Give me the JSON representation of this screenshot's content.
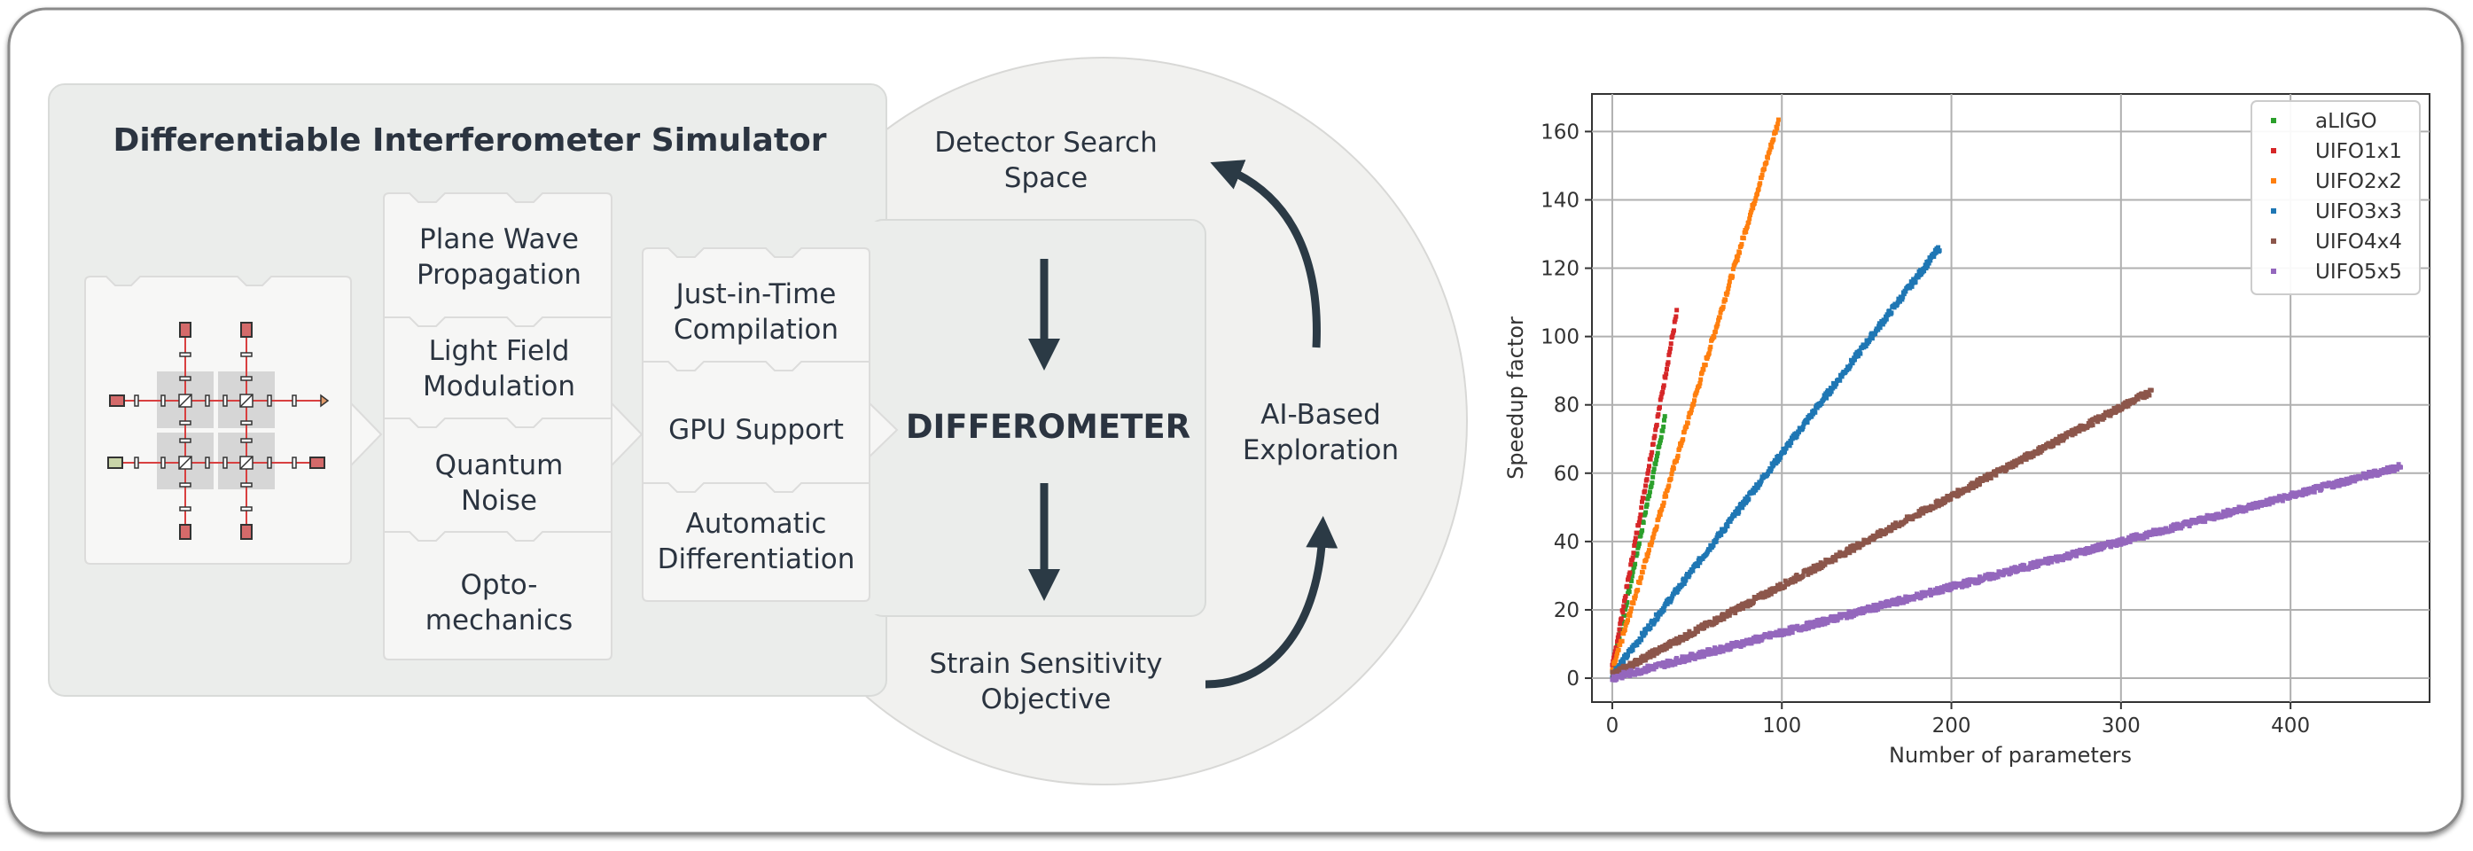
{
  "simulator": {
    "title": "Differentiable Interferometer Simulator",
    "physics_blocks": [
      "Plane Wave Propagation",
      "Light Field Modulation",
      "Quantum Noise",
      "Opto-mechanics"
    ],
    "software_blocks": [
      "Just-in-Time Compilation",
      "GPU Support",
      "Automatic Differentiation"
    ]
  },
  "core": {
    "name": "DIFFEROMETER",
    "search_space": "Detector Search Space",
    "objective": "Strain Sensitivity Objective",
    "exploration": "AI-Based Exploration"
  },
  "colors": {
    "panel_fill": "#ebedeb",
    "block_fill": "#f6f6f5",
    "circle_fill": "#f1f1ef",
    "text_dark": "#2b3440",
    "arrow": "#2b3a45"
  },
  "chart_data": {
    "type": "scatter",
    "title": "",
    "xlabel": "Number of parameters",
    "ylabel": "Speedup factor",
    "xlim": [
      -12,
      482
    ],
    "ylim": [
      -7,
      171
    ],
    "xticks": [
      0,
      100,
      200,
      300,
      400
    ],
    "yticks": [
      0,
      20,
      40,
      60,
      80,
      100,
      120,
      140,
      160
    ],
    "grid": true,
    "legend_position": "top-right",
    "series": [
      {
        "name": "aLIGO",
        "color": "#2ca02c",
        "x_range": [
          0,
          31
        ],
        "y_start": 2,
        "y_end": 76
      },
      {
        "name": "UIFO1x1",
        "color": "#d62728",
        "x_range": [
          0,
          38
        ],
        "y_start": 3,
        "y_end": 107
      },
      {
        "name": "UIFO2x2",
        "color": "#ff7f0e",
        "x_range": [
          0,
          98
        ],
        "y_start": 2,
        "y_end": 163
      },
      {
        "name": "UIFO3x3",
        "color": "#1f77b4",
        "x_range": [
          0,
          193
        ],
        "y_start": 1,
        "y_end": 126
      },
      {
        "name": "UIFO4x4",
        "color": "#8c564b",
        "x_range": [
          0,
          318
        ],
        "y_start": 1,
        "y_end": 84
      },
      {
        "name": "UIFO5x5",
        "color": "#9467bd",
        "x_range": [
          0,
          465
        ],
        "y_start": 0,
        "y_end": 62
      }
    ]
  }
}
